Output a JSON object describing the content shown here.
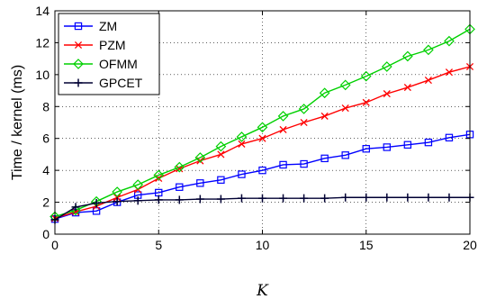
{
  "chart_data": {
    "type": "line",
    "xlabel": "K",
    "ylabel": "Time / kernel (ms)",
    "xlim": [
      0,
      20
    ],
    "ylim": [
      0,
      14
    ],
    "xticks": [
      "0",
      "5",
      "10",
      "15",
      "20"
    ],
    "yticks": [
      "0",
      "2",
      "4",
      "6",
      "8",
      "10",
      "12",
      "14"
    ],
    "grid": true,
    "legend_position": "top-left",
    "x": [
      0,
      1,
      2,
      3,
      4,
      5,
      6,
      7,
      8,
      9,
      10,
      11,
      12,
      13,
      14,
      15,
      16,
      17,
      18,
      19,
      20
    ],
    "series": [
      {
        "name": "ZM",
        "color": "#0000ff",
        "marker": "square",
        "values": [
          0.95,
          1.35,
          1.45,
          2.0,
          2.45,
          2.6,
          2.95,
          3.2,
          3.4,
          3.75,
          4.0,
          4.35,
          4.4,
          4.75,
          4.95,
          5.35,
          5.45,
          5.6,
          5.75,
          6.05,
          6.25
        ]
      },
      {
        "name": "PZM",
        "color": "#ff0000",
        "marker": "x",
        "values": [
          1.0,
          1.4,
          1.75,
          2.3,
          2.8,
          3.5,
          4.1,
          4.6,
          5.0,
          5.65,
          6.0,
          6.55,
          7.0,
          7.4,
          7.9,
          8.25,
          8.8,
          9.2,
          9.65,
          10.15,
          10.5
        ]
      },
      {
        "name": "OFMM",
        "color": "#00d000",
        "marker": "diamond",
        "values": [
          1.1,
          1.5,
          2.05,
          2.65,
          3.1,
          3.7,
          4.2,
          4.8,
          5.5,
          6.1,
          6.7,
          7.4,
          7.85,
          8.85,
          9.35,
          9.9,
          10.5,
          11.15,
          11.55,
          12.1,
          12.85
        ]
      },
      {
        "name": "GPCET",
        "color": "#000033",
        "marker": "plus",
        "values": [
          0.9,
          1.7,
          1.95,
          2.05,
          2.1,
          2.15,
          2.15,
          2.2,
          2.2,
          2.25,
          2.25,
          2.25,
          2.25,
          2.25,
          2.3,
          2.3,
          2.3,
          2.3,
          2.3,
          2.3,
          2.3
        ]
      }
    ]
  }
}
